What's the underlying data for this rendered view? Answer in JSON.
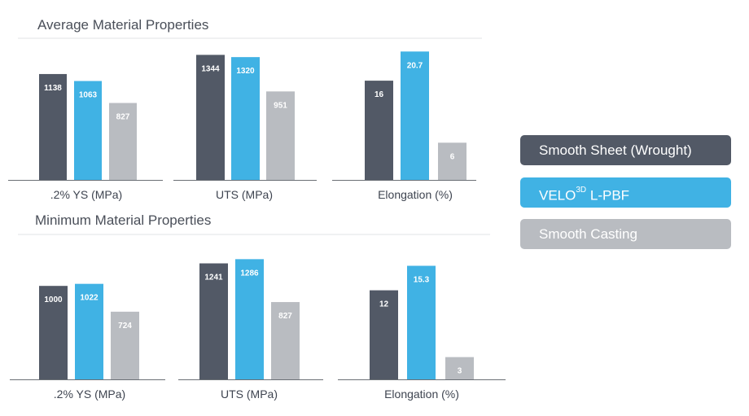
{
  "colors": {
    "wrought": "#525966",
    "lpbf": "#40b2e4",
    "casting": "#b9bcc1",
    "axis": "#6b6f75",
    "divider": "#d7d9dc"
  },
  "legend": {
    "items": [
      {
        "key": "wrought",
        "label": "Smooth Sheet (Wrought)"
      },
      {
        "key": "lpbf",
        "label_pre": "VELO",
        "label_sup": "3D",
        "label_post": " L-PBF"
      },
      {
        "key": "casting",
        "label": "Smooth Casting"
      }
    ]
  },
  "chart_data": [
    {
      "type": "bar",
      "title": "Average Material Properties",
      "series_names": [
        "Smooth Sheet (Wrought)",
        "VELO3D L-PBF",
        "Smooth Casting"
      ],
      "groups": [
        {
          "label": ".2% YS (MPa)",
          "values": [
            1138,
            1063,
            827
          ],
          "ylim": [
            0,
            1400
          ]
        },
        {
          "label": "UTS (MPa)",
          "values": [
            1344,
            1320,
            951
          ],
          "ylim": [
            0,
            1400
          ]
        },
        {
          "label": "Elongation (%)",
          "values": [
            16,
            20.7,
            6
          ],
          "ylim": [
            0,
            21
          ]
        }
      ]
    },
    {
      "type": "bar",
      "title": "Minimum Material Properties",
      "series_names": [
        "Smooth Sheet (Wrought)",
        "VELO3D L-PBF",
        "Smooth Casting"
      ],
      "groups": [
        {
          "label": ".2% YS (MPa)",
          "values": [
            1000,
            1022,
            724
          ],
          "ylim": [
            0,
            1350
          ]
        },
        {
          "label": "UTS (MPa)",
          "values": [
            1241,
            1286,
            827
          ],
          "ylim": [
            0,
            1350
          ]
        },
        {
          "label": "Elongation (%)",
          "values": [
            12,
            15.3,
            3
          ],
          "ylim": [
            0,
            17
          ]
        }
      ]
    }
  ]
}
